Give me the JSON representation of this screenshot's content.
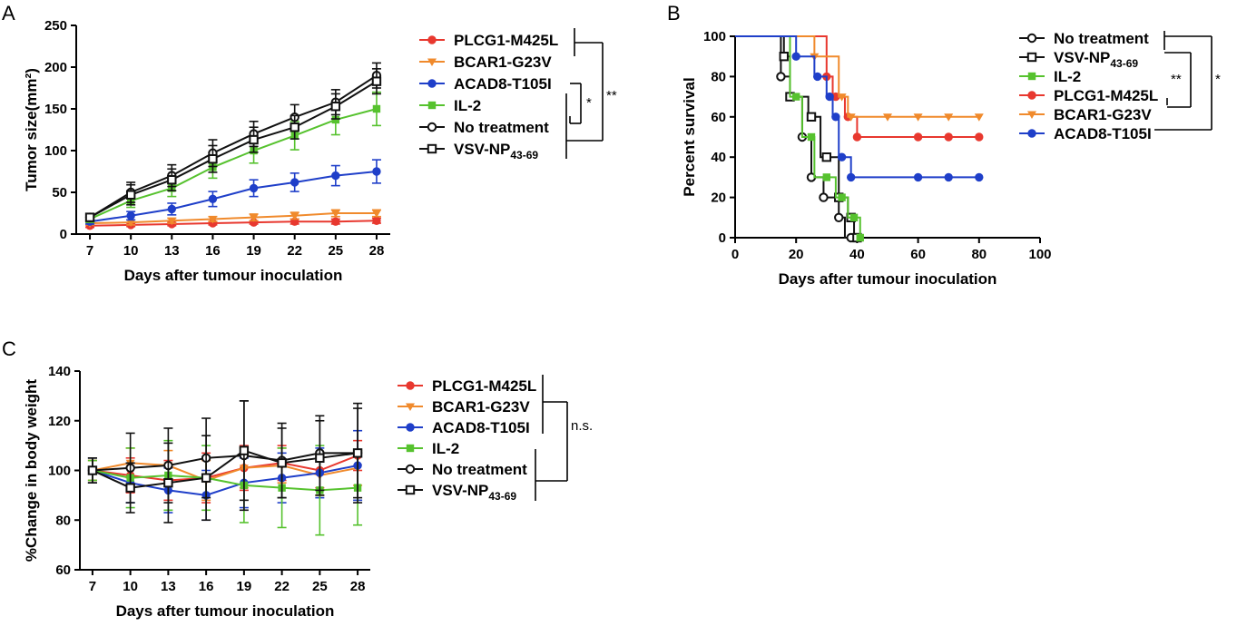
{
  "colors": {
    "PLCG1-M425L": "#e8382f",
    "BCAR1-G23V": "#f08a2c",
    "ACAD8-T105I": "#1f3fc9",
    "IL-2": "#56c22e",
    "No treatment": "#111111",
    "VSV-NP43-69": "#111111"
  },
  "chart_data": [
    {
      "panel": "A",
      "type": "line",
      "title": "",
      "xlabel": "Days after tumour inoculation",
      "ylabel": "Tumor size(mm²)",
      "x": [
        7,
        10,
        13,
        16,
        19,
        22,
        25,
        28
      ],
      "xlim": [
        6,
        29
      ],
      "ylim": [
        0,
        250
      ],
      "yticks": [
        0,
        50,
        100,
        150,
        200,
        250
      ],
      "xticks": [
        7,
        10,
        13,
        16,
        19,
        22,
        25,
        28
      ],
      "series": [
        {
          "name": "PLCG1-M425L",
          "marker": "circle-filled",
          "values": [
            10,
            11,
            12,
            13,
            14,
            15,
            15,
            16
          ],
          "errors": [
            2,
            2,
            2,
            2,
            2,
            3,
            3,
            3
          ]
        },
        {
          "name": "BCAR1-G23V",
          "marker": "triangle-down",
          "values": [
            13,
            14,
            16,
            18,
            20,
            22,
            25,
            25
          ],
          "errors": [
            2,
            3,
            3,
            3,
            4,
            4,
            4,
            4
          ]
        },
        {
          "name": "ACAD8-T105I",
          "marker": "circle-filled",
          "values": [
            15,
            22,
            30,
            42,
            55,
            62,
            70,
            75
          ],
          "errors": [
            3,
            5,
            7,
            9,
            10,
            11,
            12,
            14
          ]
        },
        {
          "name": "IL-2",
          "marker": "square-filled",
          "values": [
            18,
            40,
            55,
            80,
            100,
            118,
            137,
            150
          ],
          "errors": [
            4,
            8,
            10,
            13,
            15,
            17,
            18,
            20
          ]
        },
        {
          "name": "No treatment",
          "marker": "circle-open",
          "values": [
            20,
            50,
            70,
            97,
            120,
            140,
            158,
            190
          ],
          "errors": [
            4,
            12,
            13,
            16,
            15,
            15,
            15,
            15
          ]
        },
        {
          "name": "VSV-NP43-69",
          "marker": "square-open",
          "values": [
            20,
            47,
            65,
            90,
            113,
            128,
            153,
            183
          ],
          "errors": [
            4,
            12,
            13,
            16,
            15,
            14,
            15,
            15
          ]
        }
      ],
      "legend": [
        "PLCG1-M425L",
        "BCAR1-G23V",
        "ACAD8-T105I",
        "IL-2",
        "No treatment",
        "VSV-NP"
      ],
      "legend_subscript": "43-69",
      "significance": [
        "*",
        "**"
      ]
    },
    {
      "panel": "B",
      "type": "line",
      "title": "",
      "xlabel": "Days after tumour inoculation",
      "ylabel": "Percent survival",
      "xlim": [
        0,
        100
      ],
      "ylim": [
        0,
        100
      ],
      "xticks": [
        0,
        20,
        40,
        60,
        80,
        100
      ],
      "yticks": [
        0,
        20,
        40,
        60,
        80,
        100
      ],
      "series": [
        {
          "name": "No treatment",
          "marker": "circle-open",
          "steps": [
            [
              0,
              100
            ],
            [
              15,
              100
            ],
            [
              15,
              80
            ],
            [
              18,
              80
            ],
            [
              18,
              70
            ],
            [
              22,
              70
            ],
            [
              22,
              50
            ],
            [
              25,
              50
            ],
            [
              25,
              30
            ],
            [
              29,
              30
            ],
            [
              29,
              20
            ],
            [
              34,
              20
            ],
            [
              34,
              10
            ],
            [
              36,
              10
            ],
            [
              36,
              0
            ],
            [
              38,
              0
            ]
          ],
          "points": [
            [
              15,
              80
            ],
            [
              22,
              50
            ],
            [
              25,
              30
            ],
            [
              29,
              20
            ],
            [
              34,
              10
            ],
            [
              38,
              0
            ]
          ]
        },
        {
          "name": "VSV-NP43-69",
          "marker": "square-open",
          "steps": [
            [
              0,
              100
            ],
            [
              16,
              100
            ],
            [
              16,
              90
            ],
            [
              18,
              90
            ],
            [
              18,
              70
            ],
            [
              24,
              70
            ],
            [
              24,
              60
            ],
            [
              28,
              60
            ],
            [
              28,
              40
            ],
            [
              34,
              40
            ],
            [
              34,
              20
            ],
            [
              37,
              20
            ],
            [
              37,
              10
            ],
            [
              39,
              10
            ],
            [
              39,
              0
            ],
            [
              40,
              0
            ]
          ],
          "points": [
            [
              16,
              90
            ],
            [
              18,
              70
            ],
            [
              25,
              60
            ],
            [
              30,
              40
            ],
            [
              34,
              20
            ],
            [
              38,
              10
            ],
            [
              40,
              0
            ]
          ]
        },
        {
          "name": "IL-2",
          "marker": "square-filled",
          "steps": [
            [
              0,
              100
            ],
            [
              18,
              100
            ],
            [
              18,
              70
            ],
            [
              22,
              70
            ],
            [
              22,
              50
            ],
            [
              26,
              50
            ],
            [
              26,
              30
            ],
            [
              33,
              30
            ],
            [
              33,
              20
            ],
            [
              37,
              20
            ],
            [
              37,
              10
            ],
            [
              41,
              10
            ],
            [
              41,
              0
            ],
            [
              42,
              0
            ]
          ],
          "points": [
            [
              20,
              70
            ],
            [
              25,
              50
            ],
            [
              30,
              30
            ],
            [
              35,
              20
            ],
            [
              39,
              10
            ],
            [
              41,
              0
            ]
          ]
        },
        {
          "name": "PLCG1-M425L",
          "marker": "circle-filled",
          "steps": [
            [
              0,
              100
            ],
            [
              30,
              100
            ],
            [
              30,
              80
            ],
            [
              32,
              80
            ],
            [
              32,
              70
            ],
            [
              36,
              70
            ],
            [
              36,
              60
            ],
            [
              40,
              60
            ],
            [
              40,
              50
            ],
            [
              80,
              50
            ]
          ],
          "points": [
            [
              30,
              80
            ],
            [
              33,
              70
            ],
            [
              37,
              60
            ],
            [
              40,
              50
            ],
            [
              60,
              50
            ],
            [
              70,
              50
            ],
            [
              80,
              50
            ]
          ]
        },
        {
          "name": "BCAR1-G23V",
          "marker": "triangle-down",
          "steps": [
            [
              0,
              100
            ],
            [
              26,
              100
            ],
            [
              26,
              90
            ],
            [
              34,
              90
            ],
            [
              34,
              70
            ],
            [
              37,
              70
            ],
            [
              37,
              60
            ],
            [
              80,
              60
            ]
          ],
          "points": [
            [
              26,
              90
            ],
            [
              35,
              70
            ],
            [
              38,
              60
            ],
            [
              50,
              60
            ],
            [
              60,
              60
            ],
            [
              70,
              60
            ],
            [
              80,
              60
            ]
          ]
        },
        {
          "name": "ACAD8-T105I",
          "marker": "circle-filled",
          "steps": [
            [
              0,
              100
            ],
            [
              20,
              100
            ],
            [
              20,
              90
            ],
            [
              26,
              90
            ],
            [
              26,
              80
            ],
            [
              30,
              80
            ],
            [
              30,
              70
            ],
            [
              32,
              70
            ],
            [
              32,
              60
            ],
            [
              34,
              60
            ],
            [
              34,
              40
            ],
            [
              38,
              40
            ],
            [
              38,
              30
            ],
            [
              80,
              30
            ]
          ],
          "points": [
            [
              20,
              90
            ],
            [
              27,
              80
            ],
            [
              31,
              70
            ],
            [
              33,
              60
            ],
            [
              35,
              40
            ],
            [
              38,
              30
            ],
            [
              60,
              30
            ],
            [
              70,
              30
            ],
            [
              80,
              30
            ]
          ]
        }
      ],
      "legend": [
        "No treatment",
        "VSV-NP",
        "IL-2",
        "PLCG1-M425L",
        "BCAR1-G23V",
        "ACAD8-T105I"
      ],
      "legend_subscript": "43-69",
      "significance": [
        "**",
        "*"
      ]
    },
    {
      "panel": "C",
      "type": "line",
      "title": "",
      "xlabel": "Days after tumour inoculation",
      "ylabel": "%Change in body weight",
      "x": [
        7,
        10,
        13,
        16,
        19,
        22,
        25,
        28
      ],
      "xlim": [
        6,
        29
      ],
      "ylim": [
        60,
        140
      ],
      "yticks": [
        60,
        80,
        100,
        120,
        140
      ],
      "xticks": [
        7,
        10,
        13,
        16,
        19,
        22,
        25,
        28
      ],
      "series": [
        {
          "name": "PLCG1-M425L",
          "marker": "circle-filled",
          "values": [
            100,
            98,
            96,
            97,
            101,
            103,
            100,
            106
          ],
          "errors": [
            4,
            7,
            8,
            10,
            9,
            7,
            7,
            6
          ]
        },
        {
          "name": "BCAR1-G23V",
          "marker": "triangle-down",
          "values": [
            100,
            103,
            102,
            96,
            101,
            102,
            98,
            101
          ],
          "errors": [
            4,
            6,
            6,
            8,
            8,
            7,
            8,
            7
          ]
        },
        {
          "name": "ACAD8-T105I",
          "marker": "circle-filled",
          "values": [
            100,
            95,
            92,
            90,
            95,
            97,
            99,
            102
          ],
          "errors": [
            5,
            8,
            9,
            10,
            10,
            10,
            10,
            14
          ]
        },
        {
          "name": "IL-2",
          "marker": "square-filled",
          "values": [
            100,
            97,
            98,
            97,
            94,
            93,
            92,
            93
          ],
          "errors": [
            4,
            12,
            14,
            13,
            15,
            16,
            18,
            15
          ]
        },
        {
          "name": "No treatment",
          "marker": "circle-open",
          "values": [
            100,
            101,
            102,
            105,
            106,
            104,
            107,
            107
          ],
          "errors": [
            5,
            14,
            15,
            16,
            22,
            15,
            15,
            20
          ]
        },
        {
          "name": "VSV-NP43-69",
          "marker": "square-open",
          "values": [
            100,
            93,
            95,
            97,
            108,
            103,
            105,
            107
          ],
          "errors": [
            5,
            10,
            16,
            17,
            20,
            14,
            15,
            18
          ]
        }
      ],
      "legend": [
        "PLCG1-M425L",
        "BCAR1-G23V",
        "ACAD8-T105I",
        "IL-2",
        "No treatment",
        "VSV-NP"
      ],
      "legend_subscript": "43-69",
      "significance": [
        "n.s."
      ]
    }
  ],
  "panels": {
    "a": "A",
    "b": "B",
    "c": "C"
  }
}
